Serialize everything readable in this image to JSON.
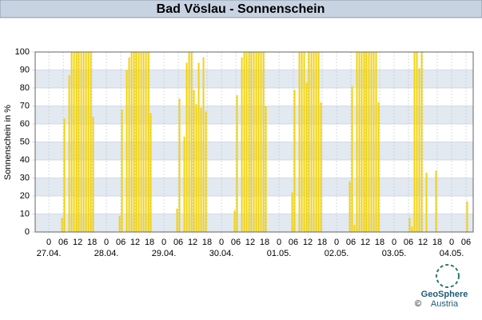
{
  "header": {
    "title": "Bad Vöslau - Sonnenschein"
  },
  "chart_data": {
    "type": "bar",
    "ylabel": "Sonnenschein in %",
    "color": "#f2d30f",
    "grid": true,
    "xlim": [
      -5.7,
      177
    ],
    "ylim": [
      0,
      100
    ],
    "yticks": [
      0,
      10,
      20,
      30,
      40,
      50,
      60,
      70,
      80,
      90,
      100
    ],
    "xticks": [
      0,
      {
        "value": 6,
        "label": "06"
      },
      12,
      18,
      {
        "value": 24,
        "label": "0"
      },
      {
        "value": 30,
        "label": "06"
      },
      {
        "value": 36,
        "label": "12"
      },
      {
        "value": 42,
        "label": "18"
      },
      {
        "value": 48,
        "label": "0"
      },
      {
        "value": 54,
        "label": "06"
      },
      {
        "value": 60,
        "label": "12"
      },
      {
        "value": 66,
        "label": "18"
      },
      {
        "value": 72,
        "label": "0"
      },
      {
        "value": 78,
        "label": "06"
      },
      {
        "value": 84,
        "label": "12"
      },
      {
        "value": 90,
        "label": "18"
      },
      {
        "value": 96,
        "label": "0"
      },
      {
        "value": 102,
        "label": "06"
      },
      {
        "value": 108,
        "label": "12"
      },
      {
        "value": 114,
        "label": "18"
      },
      {
        "value": 120,
        "label": "0"
      },
      {
        "value": 126,
        "label": "06"
      },
      {
        "value": 132,
        "label": "12"
      },
      {
        "value": 138,
        "label": "18"
      },
      {
        "value": 144,
        "label": "0"
      },
      {
        "value": 150,
        "label": "06"
      },
      {
        "value": 156,
        "label": "12"
      },
      {
        "value": 162,
        "label": "18"
      },
      {
        "value": 168,
        "label": "0"
      },
      {
        "value": 174,
        "label": "06"
      }
    ],
    "date_ticks": [
      {
        "value": 0,
        "label": "27.04."
      },
      {
        "value": 24,
        "label": "28.04."
      },
      {
        "value": 48,
        "label": "29.04."
      },
      {
        "value": 72,
        "label": "30.04."
      },
      {
        "value": 96,
        "label": "01.05."
      },
      {
        "value": 120,
        "label": "02.05."
      },
      {
        "value": 144,
        "label": "03.05."
      },
      {
        "value": 168,
        "label": "04.05."
      }
    ],
    "x": [
      5,
      6,
      8,
      9,
      10,
      11,
      12,
      13,
      14,
      15,
      16,
      17,
      18,
      29,
      30,
      32,
      33,
      34,
      35,
      36,
      37,
      38,
      39,
      40,
      41,
      42,
      53,
      54,
      56,
      57,
      58,
      59,
      60,
      61,
      62,
      63,
      64,
      65,
      77,
      78,
      80,
      81,
      82,
      83,
      84,
      85,
      86,
      87,
      88,
      89,
      90,
      101,
      102,
      104,
      105,
      106,
      107,
      108,
      109,
      110,
      111,
      112,
      113,
      125,
      126,
      127,
      128,
      129,
      130,
      131,
      132,
      133,
      134,
      135,
      136,
      137,
      150,
      151,
      152,
      153,
      154,
      155,
      157,
      161,
      174
    ],
    "values": [
      8,
      63,
      87,
      100,
      100,
      100,
      100,
      100,
      100,
      100,
      100,
      100,
      64,
      9,
      68,
      90,
      97,
      100,
      100,
      100,
      100,
      100,
      100,
      100,
      100,
      66,
      13,
      74,
      53,
      94,
      100,
      100,
      79,
      71,
      94,
      69,
      97,
      67,
      12,
      76,
      97,
      100,
      100,
      100,
      100,
      100,
      100,
      100,
      100,
      100,
      70,
      22,
      79,
      100,
      100,
      100,
      83,
      100,
      100,
      100,
      100,
      100,
      72,
      28,
      81,
      4,
      100,
      100,
      100,
      100,
      100,
      100,
      100,
      100,
      100,
      72,
      8,
      3,
      100,
      100,
      91,
      100,
      33,
      34,
      17
    ]
  },
  "logo": {
    "name": "GeoSphere",
    "sub": "Austria",
    "copyright": "©"
  }
}
